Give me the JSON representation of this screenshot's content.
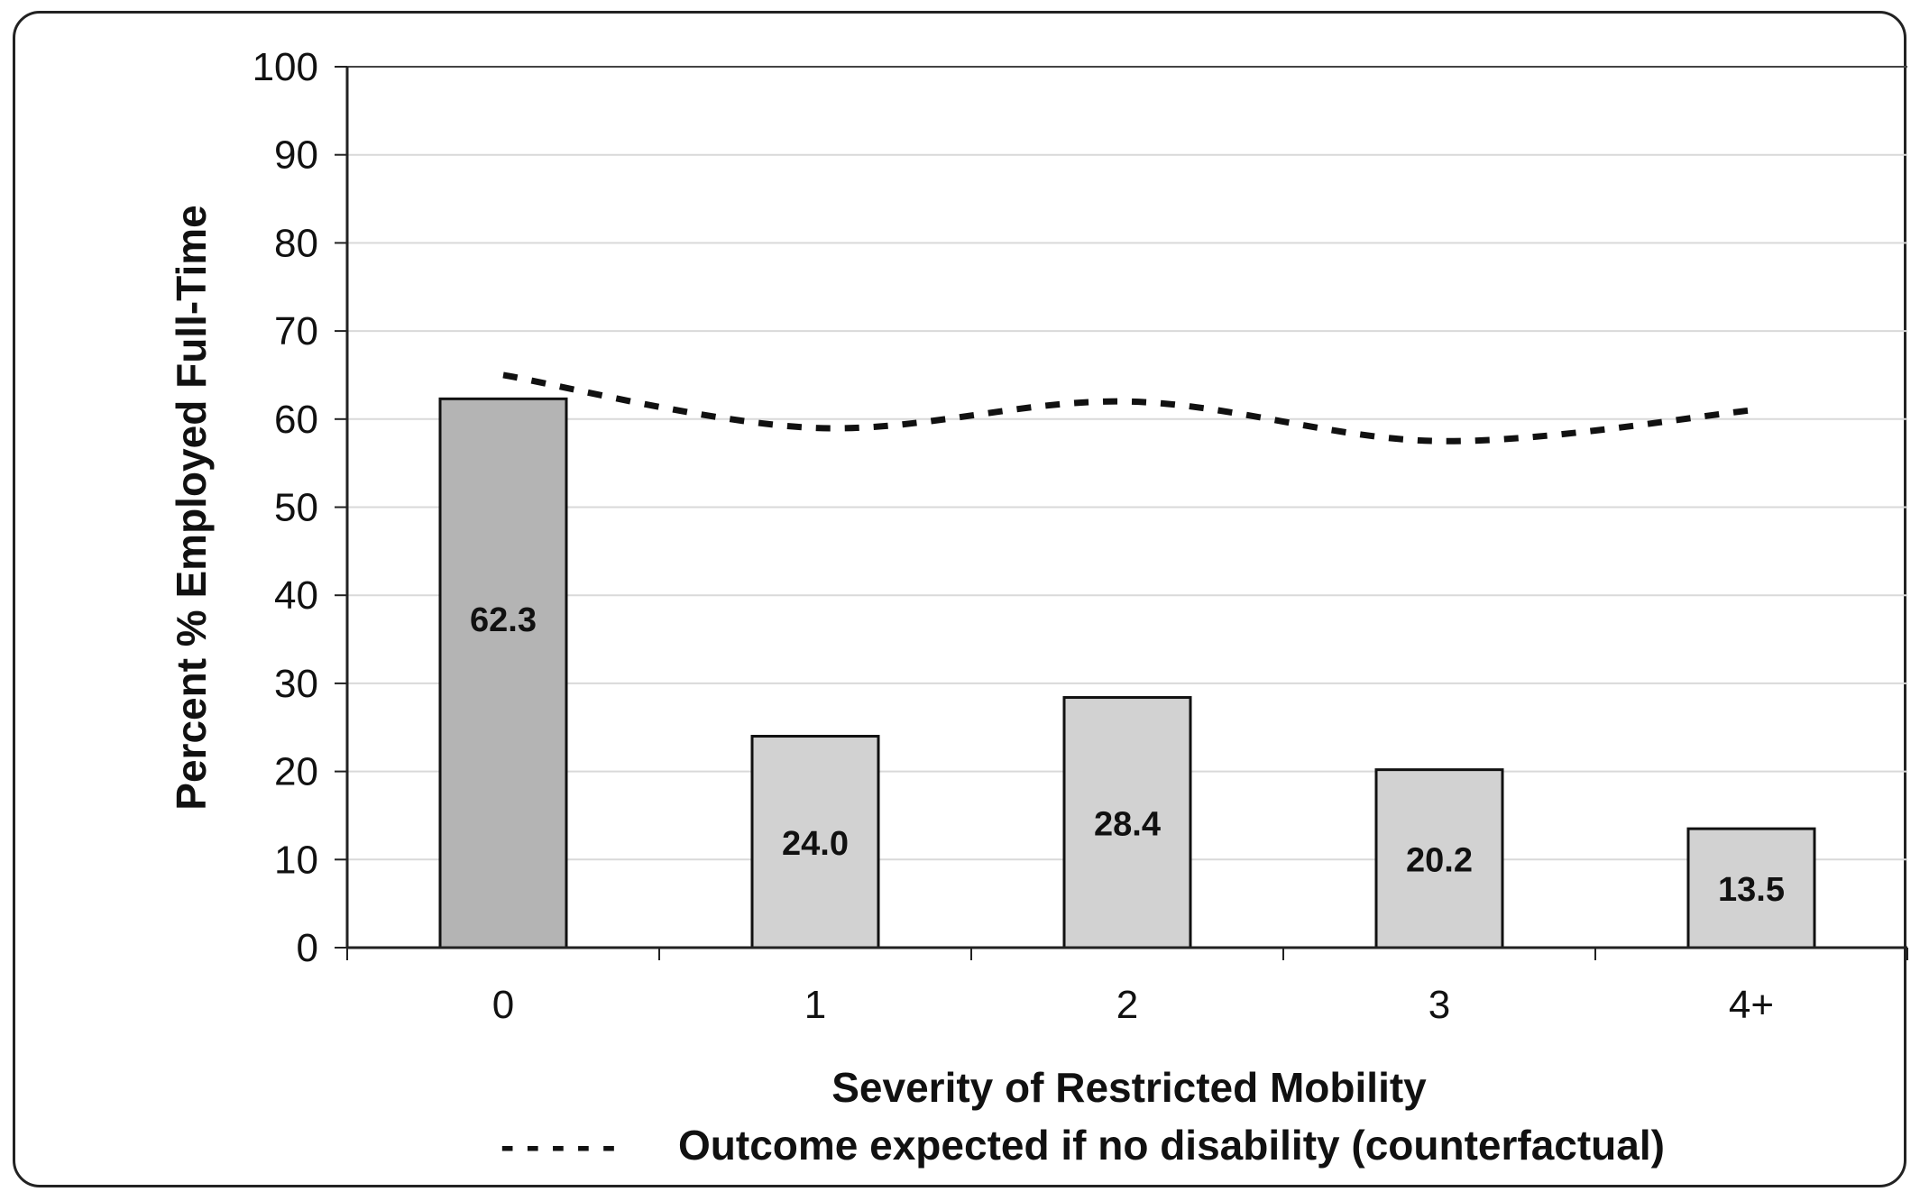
{
  "chart_data": {
    "type": "bar",
    "categories": [
      "0",
      "1",
      "2",
      "3",
      "4+"
    ],
    "series": [
      {
        "values": [
          62.3,
          24.0,
          28.4,
          20.2,
          13.5
        ],
        "labels": [
          "62.3",
          "24.0",
          "28.4",
          "20.2",
          "13.5"
        ],
        "colors": [
          "#b4b4b4",
          "#d2d2d2",
          "#d2d2d2",
          "#d2d2d2",
          "#d2d2d2"
        ]
      },
      {
        "name": "Outcome expected if no disability (counterfactual)",
        "type": "line",
        "style": "dashed",
        "values": [
          65,
          59,
          62,
          57.5,
          61
        ]
      }
    ],
    "xlabel": "Severity of Restricted Mobility",
    "ylabel": "Percent % Employed Full-Time",
    "ylim": [
      0,
      100
    ],
    "yticks": [
      "0",
      "10",
      "20",
      "30",
      "40",
      "50",
      "60",
      "70",
      "80",
      "90",
      "100"
    ],
    "grid": true,
    "legend_position": "bottom",
    "legend_marker": "- - - - -"
  }
}
